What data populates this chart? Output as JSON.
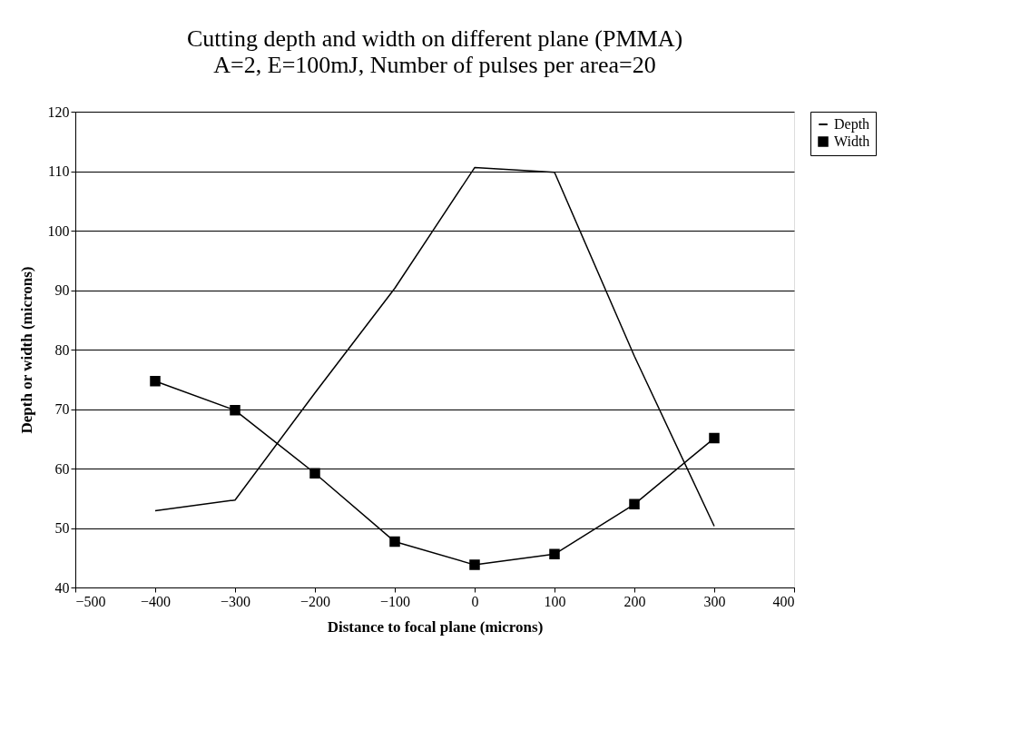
{
  "chart_data": {
    "type": "line",
    "title": "Cutting depth and width on different plane (PMMA)",
    "subtitle": "A=2, E=100mJ, Number of pulses per area=20",
    "xlabel": "Distance to focal plane (microns)",
    "ylabel": "Depth or width (microns)",
    "x": [
      -400,
      -300,
      -200,
      -100,
      0,
      100,
      200,
      300
    ],
    "series": [
      {
        "name": "Depth",
        "color": "#000000",
        "marker": "none",
        "values": [
          52.9,
          54.7,
          72.7,
          90.3,
          110.6,
          109.8,
          78.9,
          50.3
        ]
      },
      {
        "name": "Width",
        "color": "#000000",
        "marker": "square",
        "values": [
          74.7,
          69.8,
          59.2,
          47.7,
          43.8,
          45.6,
          54.0,
          65.1
        ]
      }
    ],
    "xlim": [
      -500,
      400
    ],
    "xticks": [
      -500,
      -400,
      -300,
      -200,
      -100,
      0,
      100,
      200,
      300,
      400
    ],
    "ylim": [
      40,
      120
    ],
    "yticks": [
      40,
      50,
      60,
      70,
      80,
      90,
      100,
      110,
      120
    ],
    "grid": "y",
    "legend": "right",
    "line_style": "solid"
  }
}
